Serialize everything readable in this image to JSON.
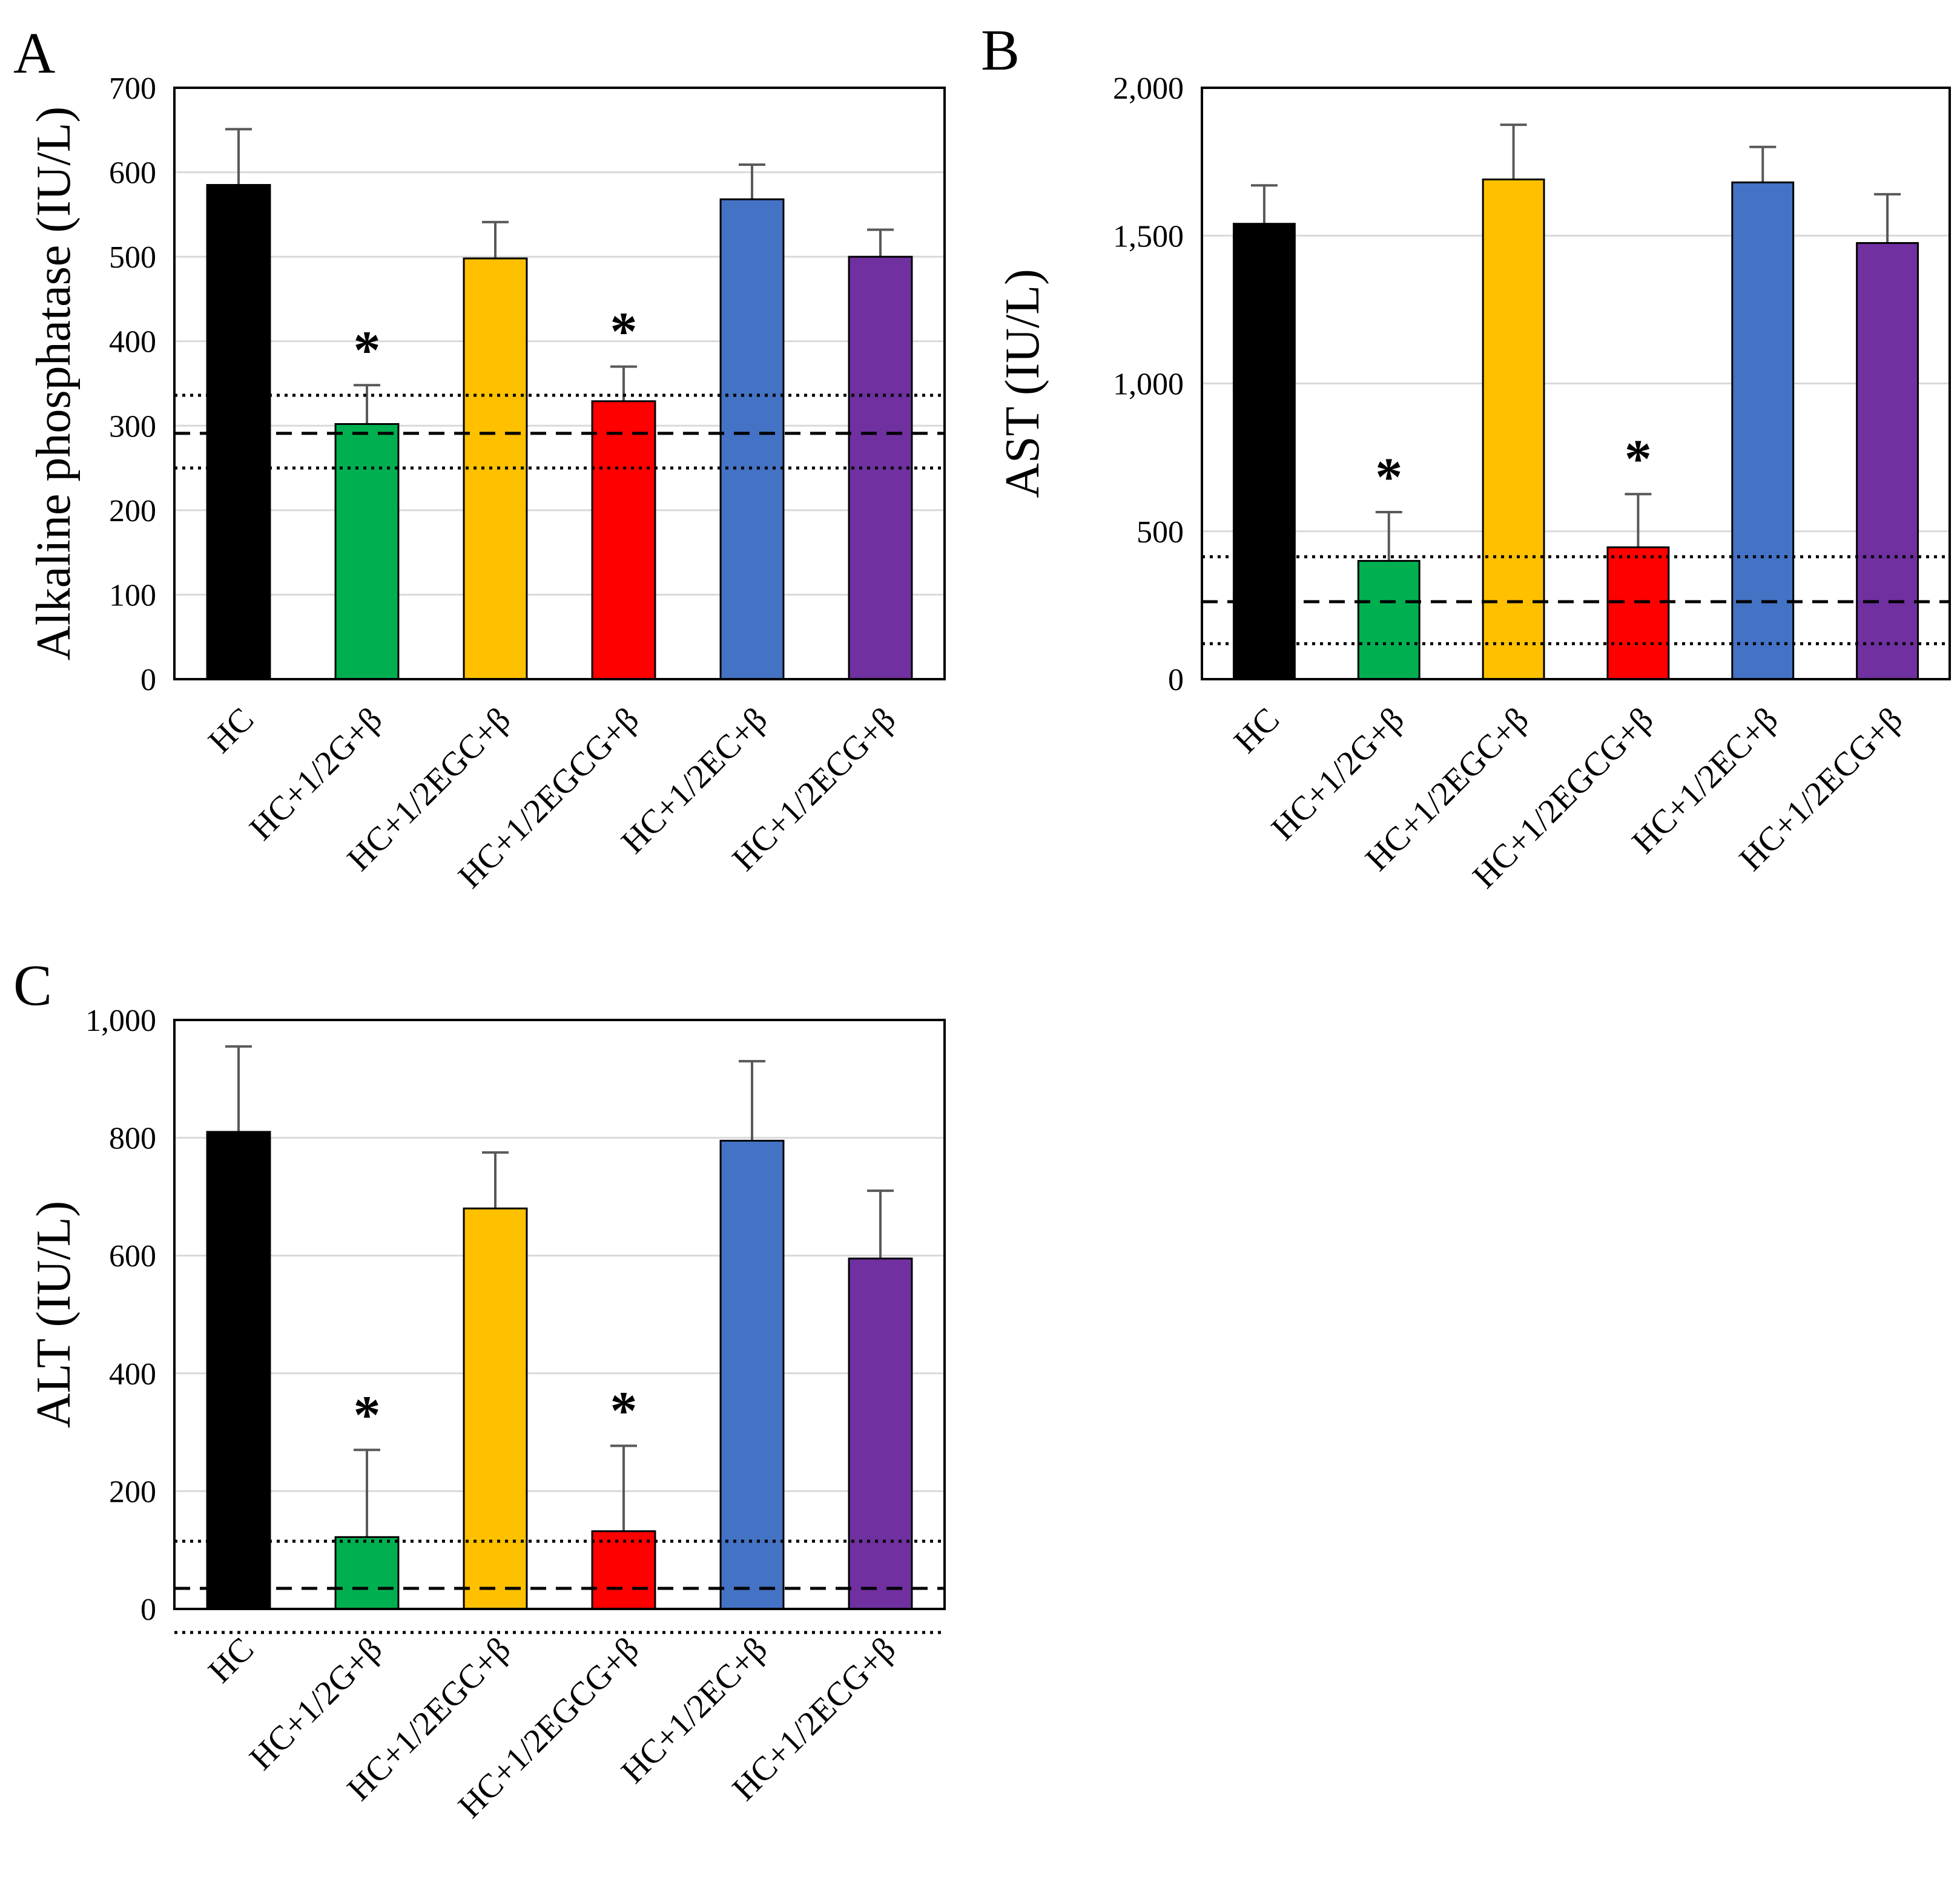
{
  "chart_data": [
    {
      "panel": "A",
      "type": "bar",
      "ylabel": "Alkaline phosphatase (IU/L)",
      "ylim": [
        0,
        700
      ],
      "yticks": [
        0,
        100,
        200,
        300,
        400,
        500,
        600,
        700
      ],
      "ytick_labels": [
        "0",
        "100",
        "200",
        "300",
        "400",
        "500",
        "600",
        "700"
      ],
      "grid": true,
      "categories": [
        "HC",
        "HC+1/2G+β",
        "HC+1/2EGC+β",
        "HC+1/2EGCG+β",
        "HC+1/2EC+β",
        "HC+1/2ECG+β"
      ],
      "values": [
        585,
        302,
        498,
        329,
        568,
        500
      ],
      "errors": [
        66,
        46,
        43,
        41,
        41,
        32
      ],
      "significant": [
        false,
        true,
        false,
        true,
        false,
        false
      ],
      "significance_marker": "*",
      "reference_lines": {
        "mean": 291,
        "upper": 336,
        "lower": 250
      }
    },
    {
      "panel": "B",
      "type": "bar",
      "ylabel": "AST (IU/L)",
      "ylim": [
        0,
        2000
      ],
      "yticks": [
        0,
        500,
        1000,
        1500,
        2000
      ],
      "ytick_labels": [
        "0",
        "500",
        "1,000",
        "1,500",
        "2,000"
      ],
      "grid": true,
      "categories": [
        "HC",
        "HC+1/2G+β",
        "HC+1/2EGC+β",
        "HC+1/2EGCG+β",
        "HC+1/2EC+β",
        "HC+1/2ECG+β"
      ],
      "values": [
        1540,
        400,
        1690,
        446,
        1680,
        1475
      ],
      "errors": [
        130,
        165,
        185,
        180,
        120,
        165
      ],
      "significant": [
        false,
        true,
        false,
        true,
        false,
        false
      ],
      "significance_marker": "*",
      "reference_lines": {
        "mean": 262,
        "upper": 414,
        "lower": 120
      }
    },
    {
      "panel": "C",
      "type": "bar",
      "ylabel": "ALT (IU/L)",
      "ylim": [
        0,
        1000
      ],
      "yticks": [
        0,
        200,
        400,
        600,
        800,
        1000
      ],
      "ytick_labels": [
        "0",
        "200",
        "400",
        "600",
        "800",
        "1,000"
      ],
      "grid": true,
      "categories": [
        "HC",
        "HC+1/2G+β",
        "HC+1/2EGC+β",
        "HC+1/2EGCG+β",
        "HC+1/2EC+β",
        "HC+1/2ECG+β"
      ],
      "values": [
        810,
        122,
        680,
        132,
        795,
        595
      ],
      "errors": [
        145,
        148,
        95,
        145,
        135,
        115
      ],
      "significant": [
        false,
        true,
        false,
        true,
        false,
        false
      ],
      "significance_marker": "*",
      "reference_lines": {
        "mean": 35,
        "upper": 115,
        "lower": -40
      }
    }
  ],
  "bar_colors": [
    "#000000",
    "#00b050",
    "#ffc000",
    "#ff0000",
    "#4472c4",
    "#7030a0"
  ]
}
